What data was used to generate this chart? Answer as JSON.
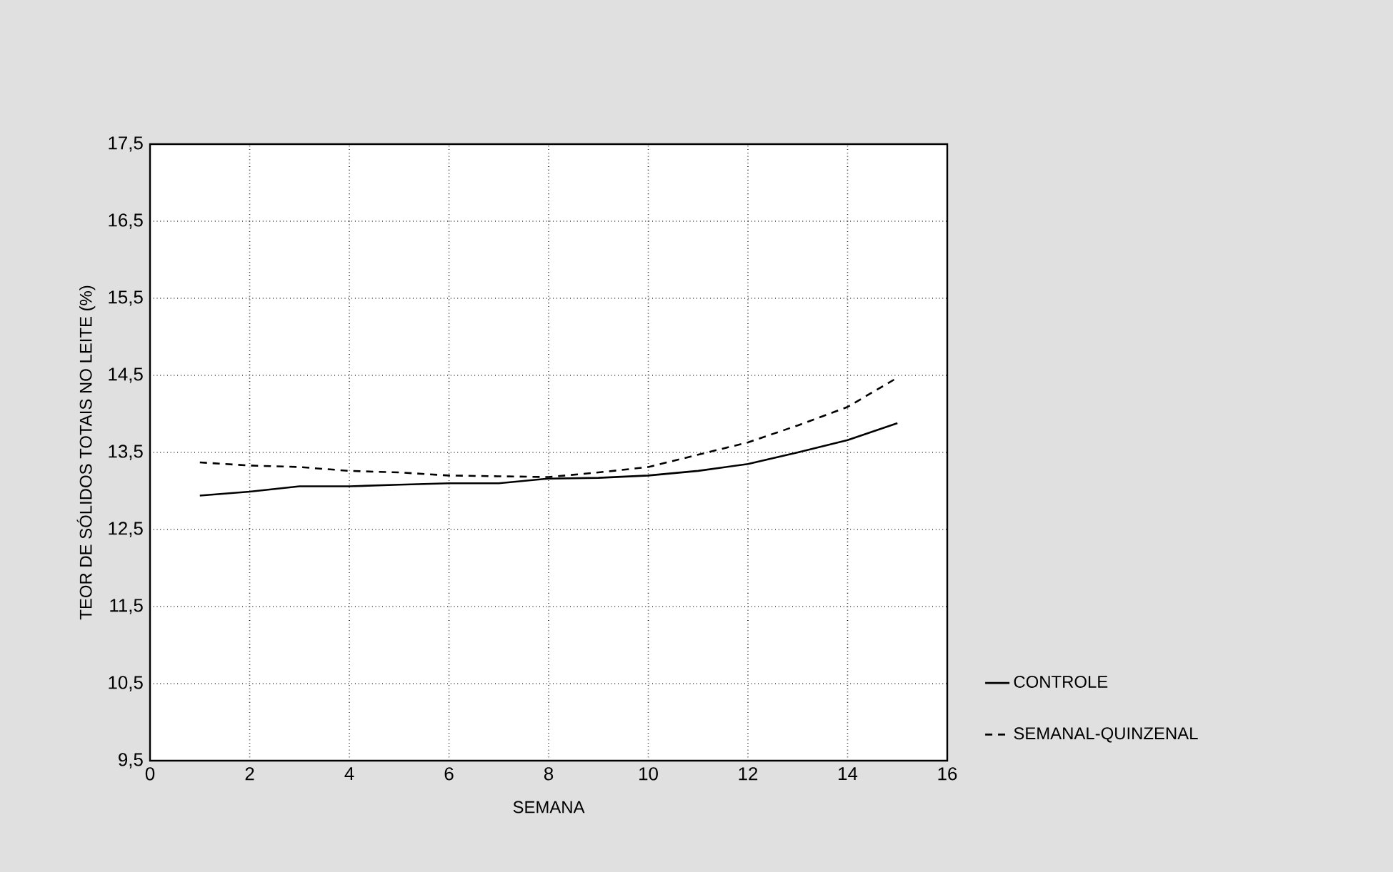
{
  "chart_data": {
    "type": "line",
    "xlabel": "SEMANA",
    "ylabel": "TEOR DE SÓLIDOS TOTAIS NO LEITE (%)",
    "x": [
      1,
      2,
      3,
      4,
      5,
      6,
      7,
      8,
      9,
      10,
      11,
      12,
      13,
      14,
      15
    ],
    "series": [
      {
        "name": "CONTROLE",
        "color": "#000000",
        "line_style": "solid",
        "values": [
          12.94,
          12.99,
          13.06,
          13.06,
          13.08,
          13.1,
          13.1,
          13.16,
          13.17,
          13.2,
          13.26,
          13.35,
          13.5,
          13.66,
          13.88
        ]
      },
      {
        "name": "SEMANAL-QUINZENAL",
        "color": "#000000",
        "line_style": "dashed",
        "values": [
          13.37,
          13.33,
          13.31,
          13.26,
          13.24,
          13.2,
          13.19,
          13.18,
          13.24,
          13.31,
          13.47,
          13.63,
          13.85,
          14.09,
          14.47
        ]
      }
    ],
    "xlim": [
      0,
      16
    ],
    "xticks": [
      0,
      2,
      4,
      6,
      8,
      10,
      12,
      14,
      16
    ],
    "ylim": [
      9.5,
      17.5
    ],
    "yticks": [
      {
        "value": 9.5,
        "label": "9,5"
      },
      {
        "value": 10.5,
        "label": "10,5"
      },
      {
        "value": 11.5,
        "label": "11,5"
      },
      {
        "value": 12.5,
        "label": "12,5"
      },
      {
        "value": 13.5,
        "label": "13,5"
      },
      {
        "value": 14.5,
        "label": "14,5"
      },
      {
        "value": 15.5,
        "label": "15,5"
      },
      {
        "value": 16.5,
        "label": "16,5"
      },
      {
        "value": 17.5,
        "label": "17,5"
      }
    ],
    "grid": true,
    "legend": "right",
    "marker": "none"
  }
}
